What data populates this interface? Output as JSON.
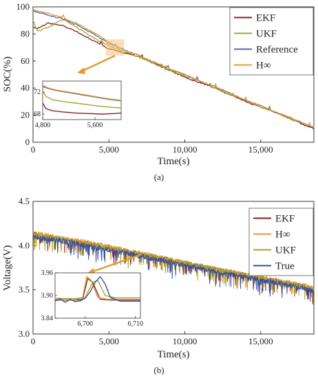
{
  "chart_data": [
    {
      "type": "line",
      "panel_label": "(a)",
      "xlabel": "Time(s)",
      "ylabel": "SOC(%)",
      "xlim": [
        0,
        18500
      ],
      "ylim": [
        0,
        100
      ],
      "xticks": [
        0,
        5000,
        10000,
        15000
      ],
      "xtick_labels": [
        "0",
        "5,000",
        "10,000",
        "15,000"
      ],
      "yticks": [
        0,
        20,
        40,
        60,
        80,
        100
      ],
      "ytick_labels": [
        "0",
        "20",
        "40",
        "60",
        "80",
        "100"
      ],
      "legend_position": "top-right",
      "series": [
        {
          "name": "EKF",
          "color": "#8b1c2a",
          "x": [
            0,
            300,
            1000,
            2000,
            3000,
            4000,
            5000,
            6000,
            7000,
            8000,
            9000,
            10000,
            11000,
            12000,
            13000,
            14000,
            15000,
            16000,
            17000,
            18000,
            18500
          ],
          "y": [
            85,
            84,
            88,
            86,
            81,
            75,
            69,
            66,
            63,
            58,
            53,
            48,
            44,
            40,
            35,
            30,
            26,
            22,
            17,
            12,
            10
          ]
        },
        {
          "name": "UKF",
          "color": "#9ea82a",
          "x": [
            0,
            300,
            1000,
            2000,
            3000,
            4000,
            5000,
            6000,
            7000,
            8000,
            9000,
            10000,
            11000,
            12000,
            13000,
            14000,
            15000,
            16000,
            17000,
            18000,
            18500
          ],
          "y": [
            90,
            82,
            85,
            91,
            84,
            77,
            71,
            67,
            63,
            58,
            53,
            49,
            45,
            40,
            35,
            31,
            26,
            22,
            17,
            13,
            11
          ]
        },
        {
          "name": "Reference",
          "color": "#5468a6",
          "x": [
            0,
            300,
            1000,
            2000,
            3000,
            4000,
            5000,
            6000,
            7000,
            8000,
            9000,
            10000,
            11000,
            12000,
            13000,
            14000,
            15000,
            16000,
            17000,
            18000,
            18500
          ],
          "y": [
            97,
            96,
            94,
            91,
            86,
            80,
            73,
            68,
            64,
            59,
            54,
            50,
            45,
            41,
            36,
            31,
            27,
            22,
            18,
            13,
            11
          ]
        },
        {
          "name": "H∞",
          "color": "#e29a33",
          "x": [
            0,
            300,
            1000,
            2000,
            3000,
            4000,
            5000,
            6000,
            7000,
            8000,
            9000,
            10000,
            11000,
            12000,
            13000,
            14000,
            15000,
            16000,
            17000,
            18000,
            18500
          ],
          "y": [
            98,
            97,
            95,
            92,
            87,
            81,
            74,
            68,
            64,
            59,
            54,
            50,
            45,
            41,
            36,
            31,
            27,
            22,
            18,
            13,
            11
          ]
        }
      ],
      "inset": {
        "xlim": [
          4800,
          6000
        ],
        "ylim": [
          67,
          74
        ],
        "xticks": [
          4800,
          5600
        ],
        "xtick_labels": [
          "4,800",
          "5,600"
        ],
        "yticks": [
          68,
          72
        ],
        "ytick_labels": [
          "68",
          "72"
        ],
        "series": [
          {
            "name": "EKF",
            "color": "#8b1c2a",
            "x": [
              4800,
              4850,
              4950,
              5100,
              5300,
              5500,
              5700,
              5900,
              6000
            ],
            "y": [
              70,
              69,
              68.6,
              68.4,
              68.2,
              68.1,
              68.0,
              68.1,
              68.2
            ]
          },
          {
            "name": "UKF",
            "color": "#9ea82a",
            "x": [
              4800,
              4850,
              4950,
              5100,
              5300,
              5500,
              5700,
              5900,
              6000
            ],
            "y": [
              72.2,
              71.2,
              70.6,
              70.3,
              70.0,
              69.7,
              69.4,
              69.2,
              69.1
            ]
          },
          {
            "name": "Reference",
            "color": "#5468a6",
            "x": [
              4800,
              4900,
              5000,
              5200,
              5400,
              5600,
              5800,
              6000
            ],
            "y": [
              73.0,
              72.6,
              72.3,
              71.9,
              71.5,
              71.1,
              70.7,
              70.4
            ]
          },
          {
            "name": "H∞",
            "color": "#e29a33",
            "x": [
              4800,
              4900,
              5000,
              5200,
              5400,
              5600,
              5800,
              6000
            ],
            "y": [
              73.2,
              72.7,
              72.4,
              72.0,
              71.6,
              71.2,
              70.8,
              70.5
            ]
          }
        ]
      }
    },
    {
      "type": "line",
      "panel_label": "(b)",
      "xlabel": "Time(s)",
      "ylabel": "Voltage(V)",
      "xlim": [
        0,
        18500
      ],
      "ylim": [
        3.0,
        4.5
      ],
      "xticks": [
        0,
        5000,
        10000,
        15000
      ],
      "xtick_labels": [
        "0",
        "5,000",
        "10,000",
        "15,000"
      ],
      "yticks": [
        3.0,
        3.5,
        4.0,
        4.5
      ],
      "ytick_labels": [
        "3.0",
        "3.5",
        "4.0",
        "4.5"
      ],
      "legend_position": "top-right",
      "series": [
        {
          "name": "EKF",
          "color": "#8b1c2a",
          "x": [
            0,
            2000,
            4000,
            6000,
            8000,
            10000,
            12000,
            14000,
            16000,
            18000,
            18500
          ],
          "y": [
            4.13,
            4.07,
            4.01,
            3.94,
            3.87,
            3.8,
            3.73,
            3.66,
            3.6,
            3.53,
            3.5
          ]
        },
        {
          "name": "H∞",
          "color": "#e29a33",
          "x": [
            0,
            2000,
            4000,
            6000,
            8000,
            10000,
            12000,
            14000,
            16000,
            18000,
            18500
          ],
          "y": [
            4.14,
            4.08,
            4.02,
            3.95,
            3.88,
            3.81,
            3.74,
            3.67,
            3.61,
            3.54,
            3.51
          ]
        },
        {
          "name": "UKF",
          "color": "#9ea82a",
          "x": [
            0,
            2000,
            4000,
            6000,
            8000,
            10000,
            12000,
            14000,
            16000,
            18000,
            18500
          ],
          "y": [
            4.12,
            4.07,
            4.0,
            3.94,
            3.87,
            3.8,
            3.73,
            3.66,
            3.59,
            3.53,
            3.5
          ]
        },
        {
          "name": "True",
          "color": "#3a4fa3",
          "x": [
            0,
            2000,
            4000,
            6000,
            8000,
            10000,
            12000,
            14000,
            16000,
            18000,
            18500
          ],
          "y": [
            4.1,
            4.05,
            3.98,
            3.92,
            3.85,
            3.78,
            3.71,
            3.64,
            3.58,
            3.51,
            3.48
          ]
        }
      ],
      "inset": {
        "xlim": [
          6694,
          6711
        ],
        "ylim": [
          3.84,
          3.96
        ],
        "xticks": [
          6700,
          6710
        ],
        "xtick_labels": [
          "6,700",
          "6,710"
        ],
        "yticks": [
          3.84,
          3.9,
          3.96
        ],
        "ytick_labels": [
          "3.84",
          "3.90",
          "3.96"
        ],
        "series": [
          {
            "name": "EKF",
            "color": "#8b1c2a",
            "x": [
              6694,
              6696,
              6698,
              6699.5,
              6700.5,
              6701.5,
              6703,
              6705,
              6711
            ],
            "y": [
              3.888,
              3.888,
              3.888,
              3.89,
              3.945,
              3.935,
              3.89,
              3.888,
              3.888
            ]
          },
          {
            "name": "H∞",
            "color": "#e29a33",
            "x": [
              6694,
              6696,
              6698,
              6699.5,
              6700.3,
              6701.2,
              6702.5,
              6704.5,
              6711
            ],
            "y": [
              3.89,
              3.889,
              3.889,
              3.895,
              3.95,
              3.94,
              3.895,
              3.89,
              3.89
            ]
          },
          {
            "name": "UKF",
            "color": "#9ea82a",
            "x": [
              6694,
              6696,
              6698,
              6700,
              6701.5,
              6702.5,
              6704,
              6706,
              6711
            ],
            "y": [
              3.893,
              3.892,
              3.892,
              3.895,
              3.935,
              3.94,
              3.9,
              3.894,
              3.894
            ]
          },
          {
            "name": "True",
            "color": "#3a4fa3",
            "x": [
              6694,
              6695,
              6696,
              6697,
              6698,
              6699,
              6700,
              6701,
              6702,
              6703,
              6704,
              6705,
              6707,
              6711
            ],
            "y": [
              3.885,
              3.892,
              3.882,
              3.89,
              3.884,
              3.886,
              3.893,
              3.91,
              3.935,
              3.95,
              3.93,
              3.895,
              3.885,
              3.885
            ]
          }
        ]
      }
    }
  ]
}
